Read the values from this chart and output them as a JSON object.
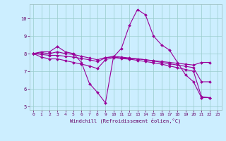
{
  "bg_color": "#cceeff",
  "plot_bg_color": "#cceeff",
  "grid_color": "#99cccc",
  "line_color": "#990099",
  "marker_color": "#990099",
  "xlabel": "Windchill (Refroidissement éolien,°C)",
  "xlim": [
    -0.5,
    23.5
  ],
  "ylim": [
    4.8,
    10.8
  ],
  "yticks": [
    5,
    6,
    7,
    8,
    9,
    10
  ],
  "xticks": [
    0,
    1,
    2,
    3,
    4,
    5,
    6,
    7,
    8,
    9,
    10,
    11,
    12,
    13,
    14,
    15,
    16,
    17,
    18,
    19,
    20,
    21,
    22,
    23
  ],
  "series": [
    [
      8.0,
      8.1,
      8.1,
      8.4,
      8.1,
      8.0,
      7.5,
      6.3,
      5.8,
      5.2,
      7.8,
      8.3,
      9.6,
      10.5,
      10.2,
      9.0,
      8.5,
      8.2,
      7.5,
      6.8,
      6.4,
      5.5,
      5.5
    ],
    [
      8.0,
      8.05,
      8.0,
      8.1,
      8.0,
      7.95,
      7.85,
      7.75,
      7.65,
      7.78,
      7.8,
      7.75,
      7.72,
      7.7,
      7.65,
      7.6,
      7.55,
      7.5,
      7.45,
      7.4,
      7.35,
      7.5,
      7.5
    ],
    [
      8.0,
      7.95,
      7.9,
      7.9,
      7.85,
      7.8,
      7.72,
      7.65,
      7.55,
      7.75,
      7.85,
      7.8,
      7.75,
      7.7,
      7.65,
      7.58,
      7.5,
      7.42,
      7.35,
      7.28,
      7.2,
      6.4,
      6.4
    ],
    [
      8.0,
      7.8,
      7.7,
      7.7,
      7.6,
      7.5,
      7.4,
      7.3,
      7.15,
      7.65,
      7.78,
      7.72,
      7.68,
      7.62,
      7.55,
      7.48,
      7.4,
      7.3,
      7.2,
      7.1,
      7.0,
      5.55,
      5.5
    ]
  ]
}
